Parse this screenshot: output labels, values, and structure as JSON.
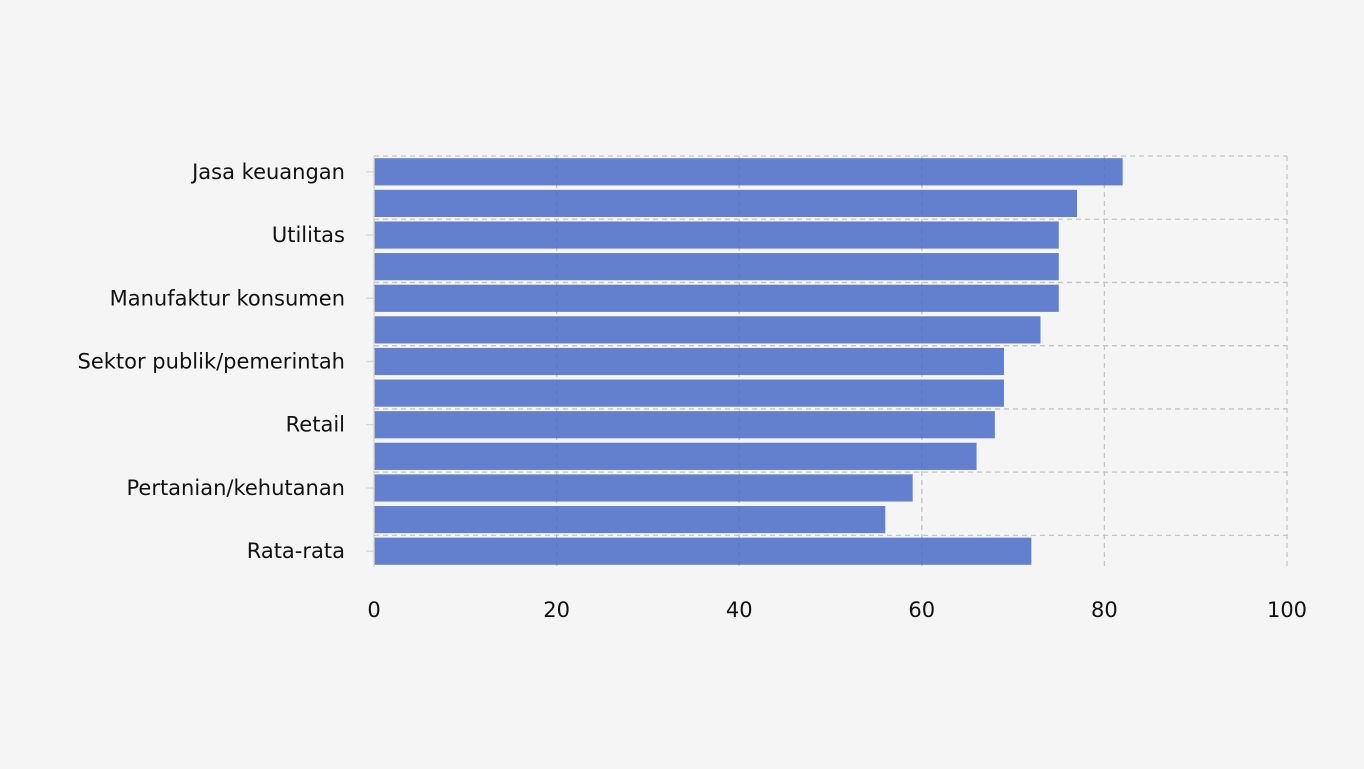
{
  "chart_data": {
    "type": "bar",
    "orientation": "horizontal",
    "categories": [
      "Jasa keuangan",
      "",
      "Utilitas",
      "",
      "Manufaktur konsumen",
      "",
      "Sektor publik/pemerintah",
      "",
      "Retail",
      "",
      "Pertanian/kehutanan",
      "",
      "Rata-rata"
    ],
    "values": [
      82,
      77,
      75,
      75,
      75,
      73,
      69,
      69,
      68,
      66,
      59,
      56,
      72
    ],
    "xlim": [
      0,
      100
    ],
    "xticks": [
      0,
      20,
      40,
      60,
      80,
      100
    ],
    "grid": true,
    "colors": {
      "bar": "#4a6cc7",
      "background": "#f5f5f5",
      "grid": "#c4c4c4"
    }
  }
}
